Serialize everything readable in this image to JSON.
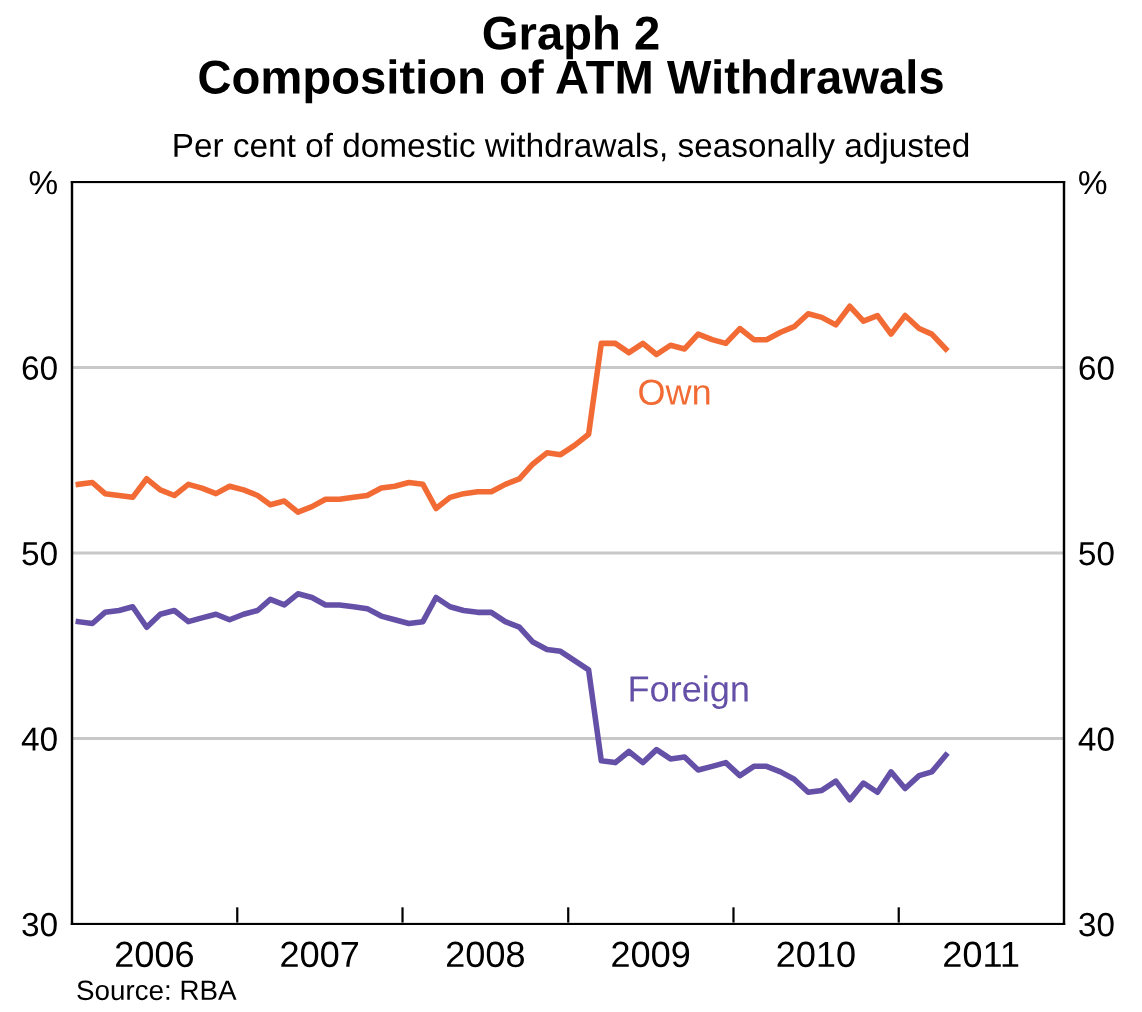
{
  "chart_data": {
    "type": "line",
    "title": "Graph 2\nComposition of ATM Withdrawals",
    "subtitle": "Per cent of domestic withdrawals, seasonally adjusted",
    "x": [
      "2006-01-15",
      "2006-02-15",
      "2006-03-15",
      "2006-04-15",
      "2006-05-15",
      "2006-06-15",
      "2006-07-15",
      "2006-08-15",
      "2006-09-15",
      "2006-10-15",
      "2006-11-15",
      "2006-12-15",
      "2007-01-15",
      "2007-02-15",
      "2007-03-15",
      "2007-04-15",
      "2007-05-15",
      "2007-06-15",
      "2007-07-15",
      "2007-08-15",
      "2007-09-15",
      "2007-10-15",
      "2007-11-15",
      "2007-12-15",
      "2008-01-15",
      "2008-02-15",
      "2008-03-15",
      "2008-04-15",
      "2008-05-15",
      "2008-06-15",
      "2008-07-15",
      "2008-08-15",
      "2008-09-15",
      "2008-10-15",
      "2008-11-15",
      "2008-12-15",
      "2009-01-15",
      "2009-02-15",
      "2009-03-15",
      "2009-04-15",
      "2009-05-15",
      "2009-06-15",
      "2009-07-15",
      "2009-08-15",
      "2009-09-15",
      "2009-10-15",
      "2009-11-15",
      "2009-12-15",
      "2010-01-15",
      "2010-02-15",
      "2010-03-15",
      "2010-04-15",
      "2010-05-15",
      "2010-06-15",
      "2010-07-15",
      "2010-08-15",
      "2010-09-15",
      "2010-10-15",
      "2010-11-15",
      "2010-12-15",
      "2011-01-15",
      "2011-02-15",
      "2011-03-15",
      "2011-04-15"
    ],
    "series": [
      {
        "name": "Own",
        "color": "#f26b35",
        "values": [
          53.7,
          53.8,
          53.2,
          53.1,
          53.0,
          54.0,
          53.4,
          53.1,
          53.7,
          53.5,
          53.2,
          53.6,
          53.4,
          53.1,
          52.6,
          52.8,
          52.2,
          52.5,
          52.9,
          52.9,
          53.0,
          53.1,
          53.5,
          53.6,
          53.8,
          53.7,
          52.4,
          53.0,
          53.2,
          53.3,
          53.3,
          53.7,
          54.0,
          54.8,
          55.4,
          55.3,
          55.8,
          56.4,
          61.3,
          61.3,
          60.8,
          61.3,
          60.7,
          61.2,
          61.0,
          61.8,
          61.5,
          61.3,
          62.1,
          61.5,
          61.5,
          61.9,
          62.2,
          62.9,
          62.7,
          62.3,
          63.3,
          62.5,
          62.8,
          61.8,
          62.8,
          62.1,
          61.8,
          61.0
        ]
      },
      {
        "name": "Foreign",
        "color": "#6550a8",
        "values": [
          46.3,
          46.2,
          46.8,
          46.9,
          47.1,
          46.0,
          46.7,
          46.9,
          46.3,
          46.5,
          46.7,
          46.4,
          46.7,
          46.9,
          47.5,
          47.2,
          47.8,
          47.6,
          47.2,
          47.2,
          47.1,
          47.0,
          46.6,
          46.4,
          46.2,
          46.3,
          47.6,
          47.1,
          46.9,
          46.8,
          46.8,
          46.3,
          46.0,
          45.2,
          44.8,
          44.7,
          44.2,
          43.7,
          38.8,
          38.7,
          39.3,
          38.7,
          39.4,
          38.9,
          39.0,
          38.3,
          38.5,
          38.7,
          38.0,
          38.5,
          38.5,
          38.2,
          37.8,
          37.1,
          37.2,
          37.7,
          36.7,
          37.6,
          37.1,
          38.2,
          37.3,
          38.0,
          38.2,
          39.1
        ]
      }
    ],
    "xlim": [
      "2006-01-01",
      "2012-01-01"
    ],
    "xticks": [
      {
        "value": "2007-01-01",
        "label": null
      },
      {
        "value": "2008-01-01",
        "label": null
      },
      {
        "value": "2009-01-01",
        "label": null
      },
      {
        "value": "2010-01-01",
        "label": null
      },
      {
        "value": "2011-01-01",
        "label": null
      },
      {
        "value": "2006-07-02",
        "label": "2006"
      },
      {
        "value": "2007-07-02",
        "label": "2007"
      },
      {
        "value": "2008-07-02",
        "label": "2008"
      },
      {
        "value": "2009-07-02",
        "label": "2009"
      },
      {
        "value": "2010-07-02",
        "label": "2010"
      },
      {
        "value": "2011-07-02",
        "label": "2011"
      }
    ],
    "ylim": [
      30,
      70
    ],
    "yticks": [
      30,
      40,
      50,
      60,
      {
        "value": 70,
        "label": "%"
      }
    ],
    "y2lim": [
      30,
      70
    ],
    "y2ticks": [
      30,
      40,
      50,
      60,
      {
        "value": 70,
        "label": "%"
      }
    ],
    "grid": "y",
    "legend": false,
    "marker": "none",
    "line_style": "solid",
    "annotations": [
      "Source: RBA"
    ]
  }
}
